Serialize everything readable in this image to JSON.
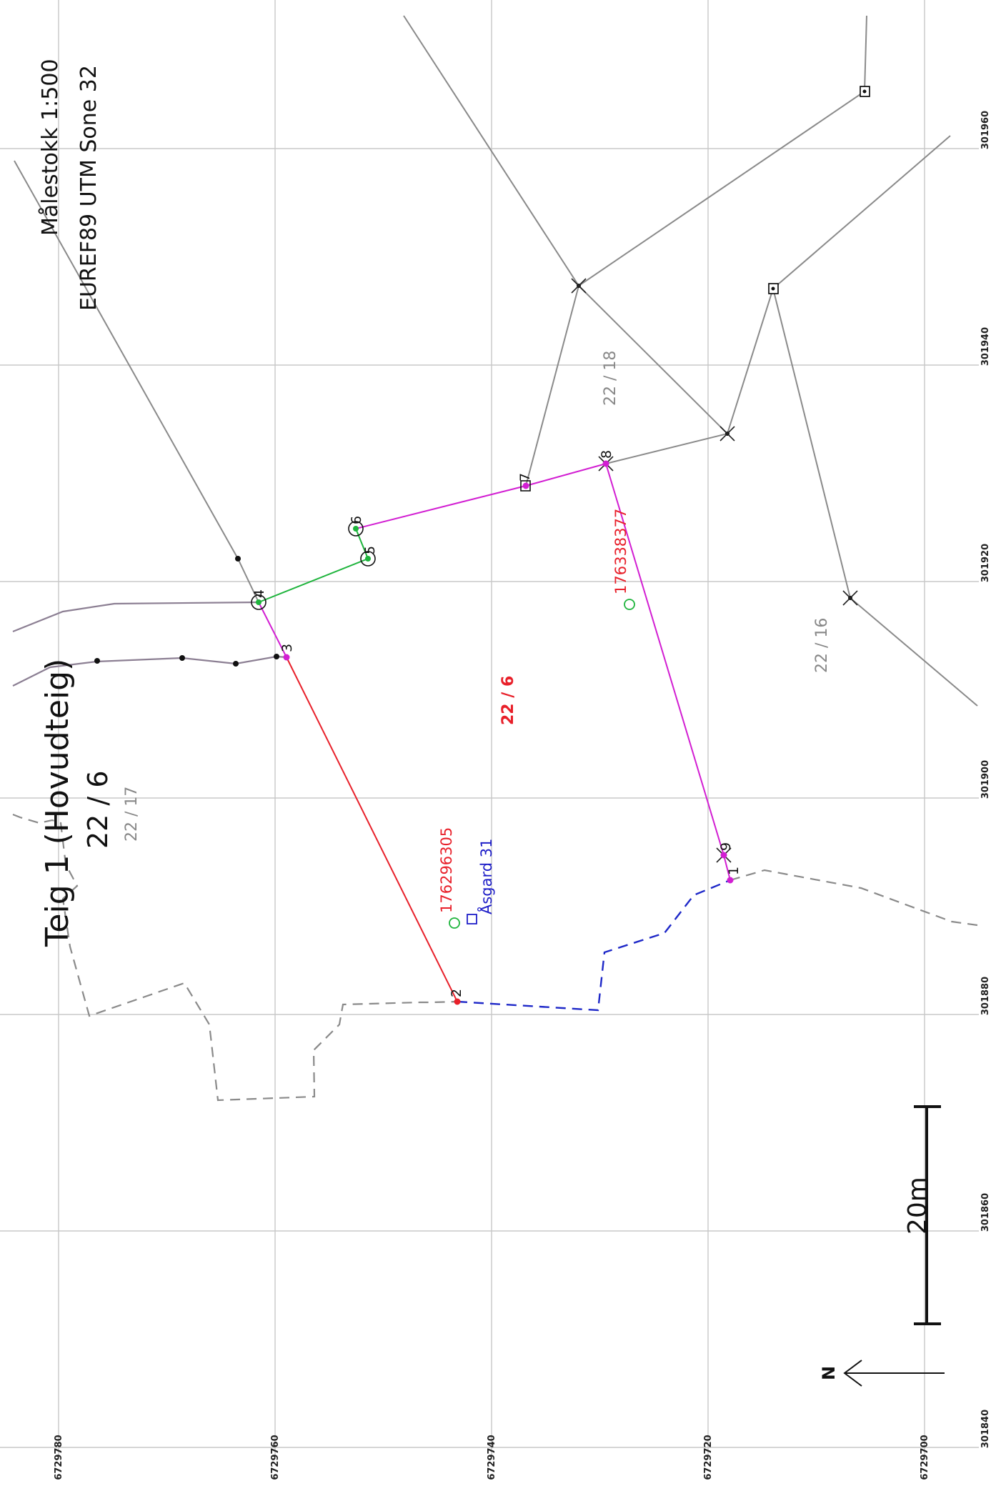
{
  "map": {
    "title": "Teig 1 (Hovudteig)",
    "parcel": "22 / 6",
    "scale": "Målestokk 1:500",
    "crs": "EUREF89 UTM Sone 32",
    "north": "N",
    "scalebar": {
      "label": "20m",
      "meters": 20
    }
  },
  "grid": {
    "eastings": [
      "301840",
      "301860",
      "301880",
      "301900",
      "301920",
      "301940",
      "301960"
    ],
    "northings": [
      "6729780",
      "6729760",
      "6729740",
      "6729720",
      "6729700"
    ]
  },
  "parcel_labels": [
    {
      "text": "22 / 6",
      "color": "#e8202a"
    },
    {
      "text": "22 / 16",
      "color": "#888888"
    },
    {
      "text": "22 / 17",
      "color": "#888888"
    },
    {
      "text": "22 / 18",
      "color": "#888888"
    }
  ],
  "building_ids": [
    {
      "text": "176296305",
      "color": "#e8202a"
    },
    {
      "text": "176338377",
      "color": "#e8202a"
    }
  ],
  "address": {
    "text": "Åsgard 31",
    "color": "#1e1ec8"
  },
  "boundary_points": [
    "1",
    "2",
    "3",
    "4",
    "5",
    "6",
    "7",
    "8",
    "9"
  ],
  "colors": {
    "boundary_red": "#e8202a",
    "boundary_magenta": "#d21ed2",
    "boundary_green": "#1eb43c",
    "road_blue": "#1e28c8",
    "neighbour_grey": "#888888",
    "grid": "#c8c8c8"
  }
}
